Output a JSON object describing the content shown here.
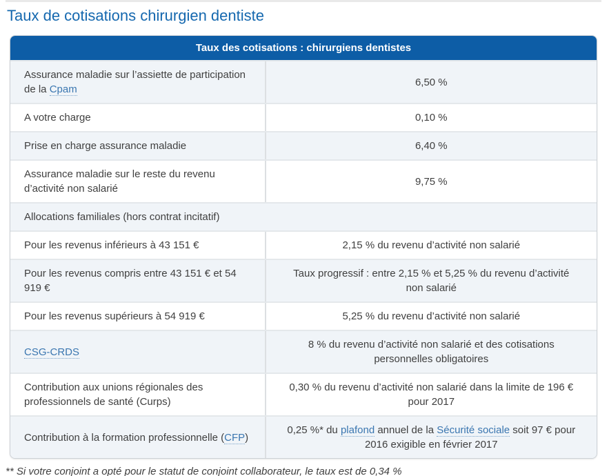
{
  "page": {
    "title": "Taux de cotisations chirurgien dentiste",
    "footnote": "** Si votre conjoint a opté pour le statut de conjoint collaborateur, le taux est de 0,34 %"
  },
  "colors": {
    "header_bg": "#0d5da6",
    "title_text": "#1568af",
    "link_text": "#3a76b0",
    "row_shade_bg": "#f0f4f8",
    "body_text": "#3f3f3f"
  },
  "table": {
    "header": "Taux des cotisations : chirurgiens dentistes",
    "rows": [
      {
        "shade": true,
        "label": [
          {
            "t": "Assurance maladie sur l’assiette de participation de la "
          },
          {
            "t": "Cpam",
            "link": true,
            "name": "cpam-link"
          }
        ],
        "value": [
          {
            "t": "6,50 %"
          }
        ]
      },
      {
        "shade": false,
        "label": [
          {
            "t": "A votre charge"
          }
        ],
        "value": [
          {
            "t": "0,10 %"
          }
        ]
      },
      {
        "shade": true,
        "label": [
          {
            "t": "Prise en charge assurance maladie"
          }
        ],
        "value": [
          {
            "t": "6,40 %"
          }
        ]
      },
      {
        "shade": false,
        "label": [
          {
            "t": "Assurance maladie sur le reste du revenu d’activité non salarié"
          }
        ],
        "value": [
          {
            "t": "9,75 %"
          }
        ]
      },
      {
        "shade": true,
        "full_width": true,
        "label": [
          {
            "t": "Allocations familiales (hors contrat incitatif)"
          }
        ],
        "value": []
      },
      {
        "shade": false,
        "label": [
          {
            "t": "Pour les revenus inférieurs à 43 151 €"
          }
        ],
        "value": [
          {
            "t": "2,15 % du revenu d’activité non salarié"
          }
        ]
      },
      {
        "shade": true,
        "label": [
          {
            "t": "Pour les revenus compris entre 43 151 € et 54 919 €"
          }
        ],
        "value": [
          {
            "t": "Taux progressif : entre 2,15 % et 5,25 % du revenu d’activité non salarié"
          }
        ]
      },
      {
        "shade": false,
        "label": [
          {
            "t": "Pour les revenus supérieurs à 54 919 €"
          }
        ],
        "value": [
          {
            "t": "5,25 % du revenu d’activité non salarié"
          }
        ]
      },
      {
        "shade": true,
        "label": [
          {
            "t": "CSG-CRDS",
            "link": true,
            "name": "csg-crds-link"
          }
        ],
        "value": [
          {
            "t": "8 % du revenu d’activité non salarié et des cotisations personnelles obligatoires"
          }
        ]
      },
      {
        "shade": false,
        "label": [
          {
            "t": "Contribution aux unions régionales des professionnels de santé (Curps)"
          }
        ],
        "value": [
          {
            "t": "0,30 % du revenu d’activité non salarié dans la limite de 196 € pour 2017"
          }
        ]
      },
      {
        "shade": true,
        "label": [
          {
            "t": "Contribution à la formation professionnelle ("
          },
          {
            "t": "CFP",
            "link": true,
            "name": "cfp-link"
          },
          {
            "t": ")"
          }
        ],
        "value": [
          {
            "t": "0,25 %* du "
          },
          {
            "t": "plafond",
            "link": true,
            "name": "plafond-link"
          },
          {
            "t": " annuel de la "
          },
          {
            "t": "Sécurité sociale",
            "link": true,
            "name": "securite-sociale-link"
          },
          {
            "t": " soit 97 € pour 2016 exigible en février 2017"
          }
        ]
      }
    ]
  }
}
